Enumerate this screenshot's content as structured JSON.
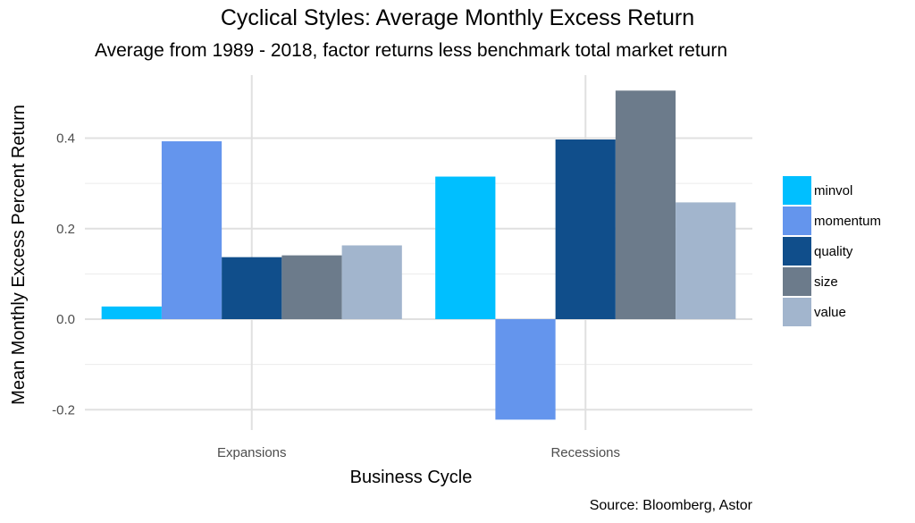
{
  "chart_data": {
    "type": "bar",
    "title": "Cyclical Styles: Average Monthly Excess Return",
    "subtitle": "Average from 1989 - 2018, factor returns less benchmark total market return",
    "xlabel": "Business Cycle",
    "ylabel": "Mean Monthly Excess Percent Return",
    "caption": "Source: Bloomberg, Astor",
    "categories": [
      "Expansions",
      "Recessions"
    ],
    "ylim": [
      -0.225,
      0.525
    ],
    "yticks": [
      -0.2,
      0.0,
      0.2,
      0.4
    ],
    "ytick_labels": [
      "-0.2",
      "0.0",
      "0.2",
      "0.4"
    ],
    "grid": true,
    "legend_position": "right",
    "series": [
      {
        "name": "minvol",
        "color": "#00BFFF",
        "values": [
          0.028,
          0.315
        ]
      },
      {
        "name": "momentum",
        "color": "#6495ED",
        "values": [
          0.393,
          -0.222
        ]
      },
      {
        "name": "quality",
        "color": "#104E8B",
        "values": [
          0.137,
          0.397
        ]
      },
      {
        "name": "size",
        "color": "#6C7B8B",
        "values": [
          0.141,
          0.505
        ]
      },
      {
        "name": "value",
        "color": "#A2B5CD",
        "values": [
          0.163,
          0.258
        ]
      }
    ]
  }
}
